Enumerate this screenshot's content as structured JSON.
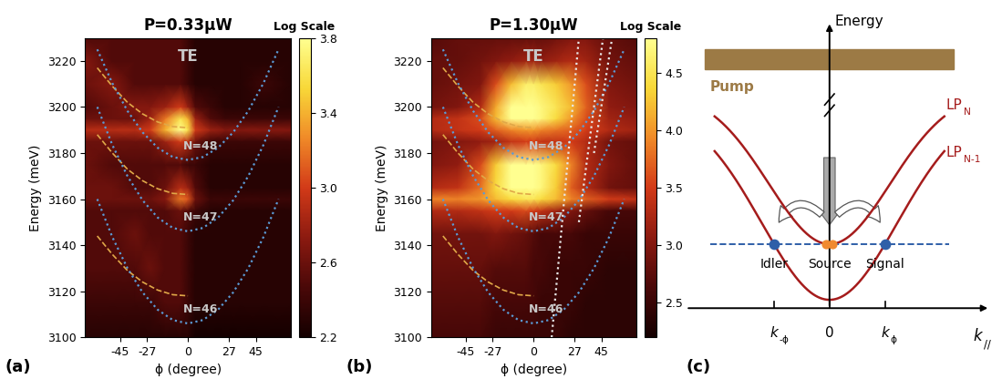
{
  "chart_data": [
    {
      "type": "heatmap",
      "panel_label": "(a)",
      "title": "P=0.33μW",
      "polarization": "TE",
      "x_label": "ϕ (degree)",
      "y_label": "Energy (meV)",
      "xlim": [
        -68,
        68
      ],
      "ylim": [
        3100,
        3230
      ],
      "xticks": [
        -45,
        -27,
        0,
        27,
        45
      ],
      "yticks": [
        3100,
        3120,
        3140,
        3160,
        3180,
        3200,
        3220
      ],
      "x": [
        -68,
        -50,
        -35,
        -25,
        -15,
        -5,
        0,
        5,
        15,
        25,
        35,
        50,
        68
      ],
      "y": [
        3100,
        3115,
        3130,
        3145,
        3155,
        3160,
        3165,
        3175,
        3185,
        3190,
        3195,
        3200,
        3210,
        3220,
        3230
      ],
      "cells": [
        [
          2.3,
          2.3,
          2.3,
          2.3,
          2.3,
          2.3,
          2.3,
          2.2,
          2.2,
          2.2,
          2.2,
          2.2,
          2.2
        ],
        [
          2.4,
          2.4,
          2.4,
          2.4,
          2.5,
          2.5,
          2.4,
          2.3,
          2.3,
          2.3,
          2.3,
          2.3,
          2.3
        ],
        [
          2.5,
          2.5,
          2.5,
          2.6,
          2.5,
          2.5,
          2.4,
          2.3,
          2.3,
          2.3,
          2.3,
          2.3,
          2.3
        ],
        [
          2.5,
          2.5,
          2.6,
          2.5,
          2.5,
          2.5,
          2.4,
          2.3,
          2.3,
          2.3,
          2.3,
          2.3,
          2.3
        ],
        [
          2.5,
          2.5,
          2.5,
          2.5,
          2.5,
          2.6,
          2.5,
          2.4,
          2.3,
          2.3,
          2.3,
          2.3,
          2.3
        ],
        [
          2.6,
          2.6,
          2.6,
          2.6,
          2.7,
          3.2,
          3.1,
          2.6,
          2.4,
          2.4,
          2.4,
          2.4,
          2.4
        ],
        [
          2.6,
          2.6,
          2.5,
          2.5,
          2.6,
          2.9,
          2.8,
          2.5,
          2.3,
          2.3,
          2.3,
          2.3,
          2.3
        ],
        [
          2.6,
          2.5,
          2.5,
          2.5,
          2.5,
          2.5,
          2.4,
          2.4,
          2.3,
          2.3,
          2.3,
          2.3,
          2.3
        ],
        [
          2.6,
          2.6,
          2.6,
          2.6,
          2.8,
          3.0,
          2.9,
          2.6,
          2.4,
          2.4,
          2.4,
          2.4,
          2.4
        ],
        [
          2.9,
          2.9,
          2.9,
          3.0,
          3.4,
          3.8,
          3.6,
          3.0,
          2.8,
          2.7,
          2.7,
          2.7,
          2.7
        ],
        [
          2.6,
          2.6,
          2.6,
          2.8,
          3.2,
          3.6,
          3.4,
          2.8,
          2.5,
          2.4,
          2.4,
          2.4,
          2.4
        ],
        [
          2.5,
          2.6,
          2.7,
          2.7,
          2.8,
          3.0,
          2.8,
          2.5,
          2.4,
          2.3,
          2.3,
          2.3,
          2.3
        ],
        [
          2.6,
          2.7,
          2.5,
          2.5,
          2.5,
          2.5,
          2.4,
          2.3,
          2.3,
          2.3,
          2.3,
          2.4,
          2.3
        ],
        [
          2.7,
          2.5,
          2.5,
          2.5,
          2.5,
          2.5,
          2.4,
          2.3,
          2.3,
          2.3,
          2.3,
          2.3,
          2.3
        ],
        [
          2.5,
          2.5,
          2.5,
          2.5,
          2.5,
          2.5,
          2.4,
          2.3,
          2.3,
          2.3,
          2.3,
          2.3,
          2.3
        ]
      ],
      "colorbar": {
        "title": "Log Scale",
        "range": [
          2.2,
          3.8
        ],
        "ticks": [
          2.2,
          2.6,
          3.0,
          3.4,
          3.8
        ]
      },
      "series": [
        {
          "color": "#e0a848",
          "line_style": "dashed",
          "x": [
            -60,
            -50,
            -40,
            -30,
            -20,
            -10,
            0
          ],
          "values": [
            3217,
            3209,
            3202,
            3197,
            3193.5,
            3191.5,
            3191
          ]
        },
        {
          "color": "#e0a848",
          "line_style": "dashed",
          "x": [
            -60,
            -50,
            -40,
            -30,
            -20,
            -10,
            0
          ],
          "values": [
            3188,
            3180,
            3173,
            3168,
            3164.5,
            3162.5,
            3162
          ]
        },
        {
          "color": "#e0a848",
          "line_style": "dashed",
          "x": [
            -60,
            -50,
            -40,
            -30,
            -20,
            -10,
            0
          ],
          "values": [
            3144,
            3136,
            3129,
            3124,
            3120.5,
            3118.5,
            3118
          ]
        },
        {
          "name": "N=48",
          "color": "#5b9bd5",
          "line_style": "dotted",
          "x": [
            -60,
            -50,
            -40,
            -30,
            -20,
            -10,
            0,
            10,
            20,
            30,
            40,
            50,
            60
          ],
          "values": [
            3225,
            3210.3,
            3198.3,
            3189,
            3182.3,
            3178.3,
            3177,
            3178.3,
            3182.3,
            3189,
            3198.3,
            3210.3,
            3225
          ]
        },
        {
          "name": "N=47",
          "color": "#5b9bd5",
          "line_style": "dotted",
          "x": [
            -60,
            -50,
            -40,
            -30,
            -20,
            -10,
            0,
            10,
            20,
            30,
            40,
            50,
            60
          ],
          "values": [
            3200,
            3183.5,
            3170,
            3159.5,
            3152,
            3147.5,
            3146,
            3147.5,
            3152,
            3159.5,
            3170,
            3183.5,
            3200
          ]
        },
        {
          "name": "N=46",
          "color": "#5b9bd5",
          "line_style": "dotted",
          "x": [
            -60,
            -50,
            -40,
            -30,
            -20,
            -10,
            0,
            10,
            20,
            30,
            40,
            50,
            60
          ],
          "values": [
            3160,
            3143.5,
            3130,
            3119.5,
            3112,
            3107.5,
            3106,
            3107.5,
            3112,
            3119.5,
            3130,
            3143.5,
            3160
          ]
        }
      ]
    },
    {
      "type": "heatmap",
      "panel_label": "(b)",
      "title": "P=1.30μW",
      "polarization": "TE",
      "x_label": "ϕ (degree)",
      "y_label": "Energy (meV)",
      "xlim": [
        -68,
        68
      ],
      "ylim": [
        3100,
        3230
      ],
      "xticks": [
        -45,
        -27,
        0,
        27,
        45
      ],
      "yticks": [
        3100,
        3120,
        3140,
        3160,
        3180,
        3200,
        3220
      ],
      "x": [
        -68,
        -50,
        -35,
        -25,
        -15,
        -5,
        0,
        5,
        15,
        25,
        35,
        50,
        68
      ],
      "y": [
        3100,
        3115,
        3130,
        3145,
        3155,
        3160,
        3165,
        3175,
        3185,
        3190,
        3195,
        3200,
        3210,
        3220,
        3230
      ],
      "cells": [
        [
          2.6,
          2.6,
          2.6,
          2.5,
          2.5,
          2.5,
          2.5,
          2.5,
          2.5,
          2.4,
          2.4,
          2.4,
          2.4
        ],
        [
          2.7,
          2.7,
          2.7,
          2.6,
          2.6,
          2.6,
          2.6,
          2.5,
          2.5,
          2.5,
          2.4,
          2.4,
          2.4
        ],
        [
          2.8,
          2.8,
          2.8,
          2.7,
          2.7,
          2.7,
          2.6,
          2.6,
          2.5,
          2.5,
          2.5,
          2.4,
          2.4
        ],
        [
          2.9,
          2.9,
          2.9,
          3.0,
          2.9,
          2.8,
          2.7,
          2.6,
          2.6,
          2.6,
          2.5,
          2.5,
          2.5
        ],
        [
          3.3,
          3.3,
          3.4,
          3.5,
          3.5,
          3.6,
          3.5,
          3.4,
          3.2,
          3.0,
          2.8,
          2.6,
          2.6
        ],
        [
          3.9,
          3.9,
          4.0,
          4.2,
          4.4,
          4.5,
          4.5,
          4.4,
          4.2,
          3.9,
          3.7,
          3.5,
          3.4
        ],
        [
          3.3,
          3.4,
          3.8,
          4.4,
          4.8,
          4.8,
          4.8,
          4.7,
          4.3,
          3.7,
          3.3,
          2.9,
          2.8
        ],
        [
          3.0,
          3.1,
          3.6,
          4.3,
          4.8,
          4.8,
          4.8,
          4.7,
          4.4,
          3.9,
          3.3,
          3.0,
          2.8
        ],
        [
          2.9,
          3.0,
          3.1,
          3.2,
          3.4,
          3.5,
          3.5,
          3.4,
          3.4,
          3.5,
          3.3,
          2.9,
          2.8
        ],
        [
          3.3,
          3.4,
          3.5,
          3.7,
          3.9,
          4.0,
          4.0,
          3.9,
          3.8,
          3.7,
          3.5,
          3.3,
          3.2
        ],
        [
          3.3,
          3.4,
          3.6,
          4.2,
          4.8,
          4.8,
          4.8,
          4.7,
          4.4,
          4.0,
          3.6,
          3.2,
          3.1
        ],
        [
          2.9,
          3.0,
          3.3,
          4.1,
          4.8,
          4.8,
          4.8,
          4.7,
          4.5,
          4.2,
          3.7,
          3.1,
          3.0
        ],
        [
          2.8,
          2.9,
          3.0,
          3.6,
          4.2,
          4.6,
          4.6,
          4.5,
          4.3,
          4.0,
          3.6,
          3.0,
          2.9
        ],
        [
          2.8,
          2.8,
          2.9,
          3.0,
          3.1,
          3.2,
          3.2,
          3.1,
          3.2,
          3.3,
          3.2,
          2.9,
          2.8
        ],
        [
          2.7,
          2.8,
          2.8,
          2.8,
          2.8,
          2.8,
          2.8,
          2.8,
          2.9,
          3.0,
          3.0,
          2.8,
          2.7
        ]
      ],
      "colorbar": {
        "title": "Log Scale",
        "range": [
          2.2,
          4.8
        ],
        "ticks": [
          2.5,
          3.0,
          3.5,
          4.0,
          4.5
        ]
      },
      "series": [
        {
          "color": "#e0a848",
          "line_style": "dashed",
          "x": [
            -60,
            -50,
            -40,
            -30,
            -20,
            -10,
            0
          ],
          "values": [
            3217,
            3209,
            3202,
            3197,
            3193.5,
            3191.5,
            3191
          ]
        },
        {
          "color": "#e0a848",
          "line_style": "dashed",
          "x": [
            -60,
            -50,
            -40,
            -30,
            -20,
            -10,
            0
          ],
          "values": [
            3188,
            3180,
            3173,
            3168,
            3164.5,
            3162.5,
            3162
          ]
        },
        {
          "color": "#e0a848",
          "line_style": "dashed",
          "x": [
            -60,
            -50,
            -40,
            -30,
            -20,
            -10,
            0
          ],
          "values": [
            3144,
            3136,
            3129,
            3124,
            3120.5,
            3118.5,
            3118
          ]
        },
        {
          "name": "N=48",
          "color": "#5b9bd5",
          "line_style": "dotted",
          "x": [
            -60,
            -50,
            -40,
            -30,
            -20,
            -10,
            0,
            10,
            20,
            30,
            40,
            50,
            60
          ],
          "values": [
            3225,
            3210.3,
            3198.3,
            3189,
            3182.3,
            3178.3,
            3177,
            3178.3,
            3182.3,
            3189,
            3198.3,
            3210.3,
            3225
          ]
        },
        {
          "name": "N=47",
          "color": "#5b9bd5",
          "line_style": "dotted",
          "x": [
            -60,
            -50,
            -40,
            -30,
            -20,
            -10,
            0,
            10,
            20,
            30,
            40,
            50,
            60
          ],
          "values": [
            3200,
            3183.5,
            3170,
            3159.5,
            3152,
            3147.5,
            3146,
            3147.5,
            3152,
            3159.5,
            3170,
            3183.5,
            3200
          ]
        },
        {
          "name": "N=46",
          "color": "#5b9bd5",
          "line_style": "dotted",
          "x": [
            -60,
            -50,
            -40,
            -30,
            -20,
            -10,
            0,
            10,
            20,
            30,
            40,
            50,
            60
          ],
          "values": [
            3160,
            3143.5,
            3130,
            3119.5,
            3112,
            3107.5,
            3106,
            3107.5,
            3112,
            3119.5,
            3130,
            3143.5,
            3160
          ]
        },
        {
          "color": "#e8e8e8",
          "line_style": "dotted",
          "x": [
            12,
            30
          ],
          "values": [
            3100,
            3230
          ]
        },
        {
          "color": "#e8e8e8",
          "line_style": "dotted",
          "x": [
            30,
            46
          ],
          "values": [
            3150,
            3230
          ]
        },
        {
          "color": "#e8e8e8",
          "line_style": "dotted",
          "x": [
            40,
            52
          ],
          "values": [
            3180,
            3230
          ]
        }
      ]
    }
  ],
  "diagram": {
    "panel_label": "(c)",
    "energy_axis": "Energy",
    "pump": "Pump",
    "upper_curve": {
      "main": "LP",
      "sub": "N"
    },
    "lower_curve": {
      "main": "LP",
      "sub": "N-1"
    },
    "idler": "Idler",
    "source": "Source",
    "signal": "Signal",
    "k_axis": {
      "main": "k",
      "sub": "//"
    },
    "k_ticks": [
      {
        "main": "k",
        "sub": "-ϕ"
      },
      {
        "main": "0"
      },
      {
        "main": "k",
        "sub": "ϕ"
      }
    ]
  }
}
